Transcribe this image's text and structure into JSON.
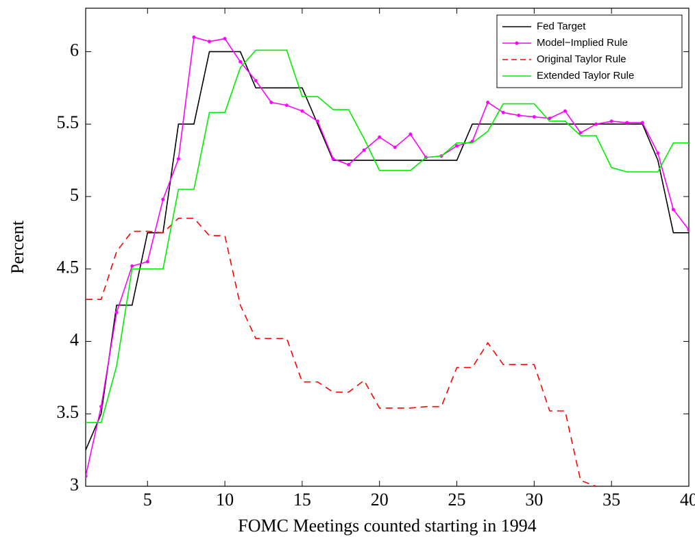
{
  "chart_data": {
    "type": "line",
    "xlabel": "FOMC Meetings counted starting in 1994",
    "ylabel": "Percent",
    "x": [
      1,
      2,
      3,
      4,
      5,
      6,
      7,
      8,
      9,
      10,
      11,
      12,
      13,
      14,
      15,
      16,
      17,
      18,
      19,
      20,
      21,
      22,
      23,
      24,
      25,
      26,
      27,
      28,
      29,
      30,
      31,
      32,
      33,
      34,
      35,
      36,
      37,
      38,
      39,
      40
    ],
    "xlim": [
      1,
      40
    ],
    "xticks": [
      5,
      10,
      15,
      20,
      25,
      30,
      35,
      40
    ],
    "ylim": [
      3,
      6.3
    ],
    "yticks": [
      3,
      3.5,
      4,
      4.5,
      5,
      5.5,
      6
    ],
    "legend": "upper right",
    "series": [
      {
        "name": "Fed Target",
        "color": "#000000",
        "dash": false,
        "markers": false,
        "values": [
          3.25,
          3.5,
          4.25,
          4.25,
          4.75,
          4.75,
          5.5,
          5.5,
          6,
          6,
          6,
          5.75,
          5.75,
          5.75,
          5.75,
          5.5,
          5.25,
          5.25,
          5.25,
          5.25,
          5.25,
          5.25,
          5.25,
          5.25,
          5.25,
          5.5,
          5.5,
          5.5,
          5.5,
          5.5,
          5.5,
          5.5,
          5.5,
          5.5,
          5.5,
          5.5,
          5.5,
          5.25,
          4.75,
          4.75
        ]
      },
      {
        "name": "Model−Implied Rule",
        "color": "#ff00ff",
        "dash": false,
        "markers": true,
        "values": [
          3.07,
          3.55,
          4.2,
          4.52,
          4.55,
          4.98,
          5.26,
          6.1,
          6.07,
          6.09,
          5.93,
          5.8,
          5.65,
          5.63,
          5.59,
          5.52,
          5.26,
          5.22,
          5.32,
          5.41,
          5.34,
          5.43,
          5.27,
          5.28,
          5.35,
          5.38,
          5.65,
          5.58,
          5.56,
          5.55,
          5.54,
          5.59,
          5.44,
          5.5,
          5.52,
          5.51,
          5.51,
          5.3,
          4.91,
          4.77
        ]
      },
      {
        "name": "Original Taylor Rule",
        "color": "#ff0000",
        "dash": true,
        "markers": false,
        "values": [
          4.29,
          4.29,
          4.62,
          4.76,
          4.76,
          4.75,
          4.85,
          4.85,
          4.73,
          4.73,
          4.25,
          4.02,
          4.02,
          4.02,
          3.72,
          3.72,
          3.65,
          3.65,
          3.73,
          3.54,
          3.54,
          3.54,
          3.55,
          3.55,
          3.82,
          3.82,
          3.99,
          3.84,
          3.84,
          3.84,
          3.52,
          3.52,
          3.04,
          3.0,
          null,
          null,
          null,
          null,
          null,
          null
        ]
      },
      {
        "name": "Extended Taylor Rule",
        "color": "#00ee00",
        "dash": false,
        "markers": false,
        "values": [
          3.44,
          3.44,
          3.83,
          4.5,
          4.5,
          4.5,
          5.05,
          5.05,
          5.58,
          5.58,
          5.89,
          6.01,
          6.01,
          6.01,
          5.69,
          5.69,
          5.6,
          5.6,
          5.4,
          5.18,
          5.18,
          5.18,
          5.27,
          5.28,
          5.37,
          5.37,
          5.45,
          5.64,
          5.64,
          5.64,
          5.52,
          5.52,
          5.42,
          5.42,
          5.2,
          5.17,
          5.17,
          5.17,
          5.37,
          5.37
        ]
      }
    ]
  }
}
